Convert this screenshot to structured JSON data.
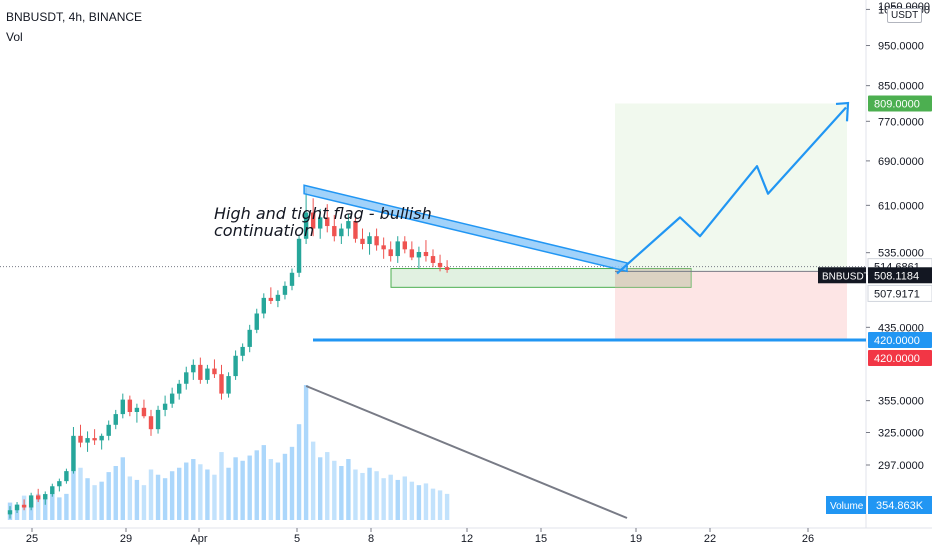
{
  "header": {
    "symbol_line": "BNBUSDT, 4h, BINANCE",
    "volume_label": "Vol"
  },
  "annotation": {
    "line1": "High and tight flag - bullish",
    "line2": "continuation"
  },
  "axis": {
    "currency_badge": "USDT",
    "top_tick": "1050.0000"
  },
  "chart_data": {
    "type": "candlestick",
    "symbol": "BNBUSDT",
    "interval": "4h",
    "exchange": "BINANCE",
    "y_scale": "log",
    "ylim": [
      255,
      1060
    ],
    "y_ticks": [
      297,
      325,
      355,
      435,
      535,
      610,
      690,
      770,
      850,
      950,
      1050
    ],
    "y_tick_labels": [
      "297.0000",
      "325.0000",
      "355.0000",
      "435.0000",
      "535.0000",
      "610.0000",
      "690.0000",
      "770.0000",
      "850.0000",
      "950.0000",
      "1050.0000"
    ],
    "x_tick_labels": [
      "25",
      "29",
      "Apr",
      "5",
      "8",
      "12",
      "15",
      "19",
      "22",
      "26"
    ],
    "price_labels": {
      "target": {
        "value": 809,
        "text": "809.0000",
        "color": "#4caf50"
      },
      "stop": {
        "value": 420,
        "text": "420.0000",
        "color": "#f23645"
      },
      "support_line": {
        "value": 420,
        "text": "420.0000",
        "color": "#2196f3"
      },
      "dotted_level": {
        "value": 514.6861,
        "text": "514.6861"
      },
      "last_price": {
        "value": 508.1184,
        "text": "508.1184",
        "symbol": "BNBUSDT"
      },
      "entry": {
        "value": 507.9171,
        "text": "507.9171"
      }
    },
    "volume_label": {
      "name": "Volume",
      "value": "354.863K"
    },
    "candles": [
      [
        259,
        265,
        256,
        262
      ],
      [
        262,
        268,
        260,
        266
      ],
      [
        266,
        270,
        262,
        264
      ],
      [
        264,
        275,
        262,
        273
      ],
      [
        273,
        278,
        268,
        270
      ],
      [
        270,
        276,
        266,
        274
      ],
      [
        274,
        282,
        272,
        280
      ],
      [
        280,
        286,
        276,
        284
      ],
      [
        284,
        294,
        282,
        292
      ],
      [
        292,
        330,
        290,
        322
      ],
      [
        322,
        332,
        312,
        316
      ],
      [
        316,
        326,
        308,
        320
      ],
      [
        320,
        328,
        314,
        318
      ],
      [
        318,
        324,
        310,
        322
      ],
      [
        322,
        336,
        318,
        332
      ],
      [
        332,
        346,
        328,
        342
      ],
      [
        342,
        362,
        338,
        356
      ],
      [
        356,
        360,
        340,
        344
      ],
      [
        344,
        352,
        334,
        348
      ],
      [
        348,
        356,
        338,
        340
      ],
      [
        340,
        346,
        322,
        328
      ],
      [
        328,
        350,
        324,
        346
      ],
      [
        346,
        360,
        340,
        352
      ],
      [
        352,
        368,
        348,
        362
      ],
      [
        362,
        376,
        356,
        372
      ],
      [
        372,
        390,
        366,
        384
      ],
      [
        384,
        398,
        376,
        392
      ],
      [
        392,
        400,
        372,
        376
      ],
      [
        376,
        392,
        372,
        388
      ],
      [
        388,
        398,
        378,
        382
      ],
      [
        382,
        392,
        356,
        362
      ],
      [
        362,
        384,
        358,
        380
      ],
      [
        380,
        408,
        376,
        402
      ],
      [
        402,
        416,
        396,
        412
      ],
      [
        412,
        438,
        406,
        432
      ],
      [
        432,
        458,
        428,
        452
      ],
      [
        452,
        478,
        446,
        472
      ],
      [
        472,
        486,
        464,
        468
      ],
      [
        468,
        482,
        460,
        476
      ],
      [
        476,
        494,
        470,
        488
      ],
      [
        488,
        512,
        482,
        506
      ],
      [
        506,
        562,
        500,
        556
      ],
      [
        556,
        640,
        548,
        598
      ],
      [
        598,
        622,
        560,
        572
      ],
      [
        572,
        604,
        556,
        590
      ],
      [
        590,
        612,
        566,
        576
      ],
      [
        576,
        594,
        552,
        560
      ],
      [
        560,
        580,
        548,
        572
      ],
      [
        572,
        596,
        560,
        584
      ],
      [
        584,
        592,
        550,
        556
      ],
      [
        556,
        572,
        540,
        548
      ],
      [
        548,
        566,
        532,
        560
      ],
      [
        560,
        572,
        538,
        546
      ],
      [
        546,
        558,
        526,
        540
      ],
      [
        540,
        552,
        522,
        530
      ],
      [
        530,
        560,
        520,
        552
      ],
      [
        552,
        560,
        534,
        540
      ],
      [
        540,
        552,
        524,
        528
      ],
      [
        528,
        544,
        512,
        536
      ],
      [
        536,
        554,
        522,
        530
      ],
      [
        530,
        540,
        514,
        520
      ],
      [
        520,
        532,
        508,
        514
      ],
      [
        514,
        524,
        506,
        510
      ]
    ],
    "volumes": [
      20,
      18,
      28,
      22,
      30,
      25,
      34,
      26,
      30,
      95,
      60,
      48,
      40,
      44,
      55,
      62,
      72,
      50,
      46,
      40,
      58,
      52,
      48,
      56,
      60,
      66,
      70,
      64,
      58,
      52,
      78,
      60,
      72,
      68,
      74,
      80,
      86,
      70,
      66,
      76,
      84,
      110,
      155,
      90,
      72,
      78,
      68,
      62,
      70,
      58,
      54,
      60,
      56,
      48,
      52,
      46,
      50,
      44,
      40,
      42,
      36,
      34,
      30
    ]
  }
}
